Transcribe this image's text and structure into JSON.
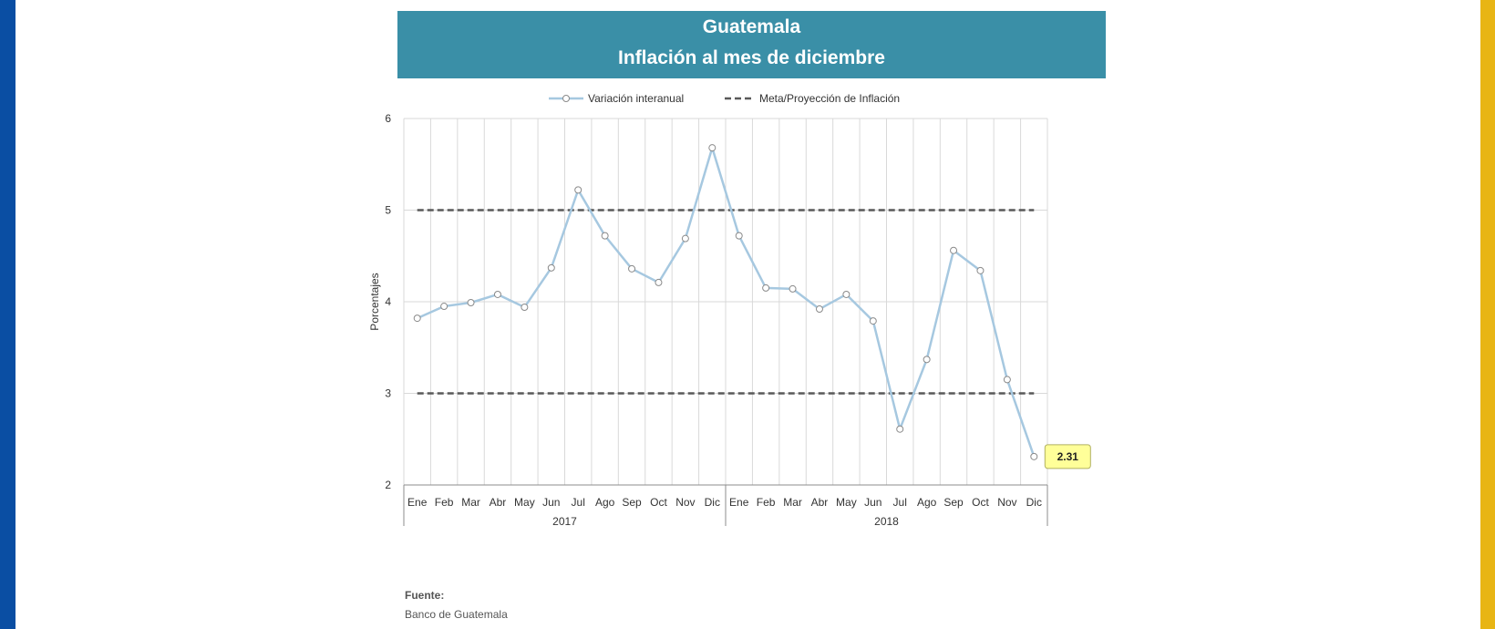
{
  "title": "Guatemala",
  "subtitle": "Inflación al mes de diciembre",
  "source": {
    "label": "Fuente:",
    "value": "Banco de Guatemala"
  },
  "colors": {
    "header": "#3a8fa7",
    "series": "#a6c8e0",
    "target": "#595959",
    "callout": "#ffff99"
  },
  "chart_data": {
    "type": "line",
    "ylabel": "Porcentajes",
    "ylim": [
      2,
      6
    ],
    "yticks": [
      2,
      3,
      4,
      5,
      6
    ],
    "grid": true,
    "legend_position": "top",
    "categories": [
      "Ene",
      "Feb",
      "Mar",
      "Abr",
      "May",
      "Jun",
      "Jul",
      "Ago",
      "Sep",
      "Oct",
      "Nov",
      "Dic",
      "Ene",
      "Feb",
      "Mar",
      "Abr",
      "May",
      "Jun",
      "Jul",
      "Ago",
      "Sep",
      "Oct",
      "Nov",
      "Dic"
    ],
    "groups": [
      {
        "label": "2017",
        "start": 0,
        "end": 11
      },
      {
        "label": "2018",
        "start": 12,
        "end": 23
      }
    ],
    "series": [
      {
        "name": "Variación interanual",
        "values": [
          3.82,
          3.95,
          3.99,
          4.08,
          3.94,
          4.37,
          5.22,
          4.72,
          4.36,
          4.21,
          4.69,
          5.68,
          4.72,
          4.15,
          4.14,
          3.92,
          4.08,
          3.79,
          2.61,
          3.37,
          4.56,
          4.34,
          3.15,
          2.31
        ]
      }
    ],
    "target_band": {
      "name": "Meta/Proyección de Inflación",
      "lower": 3,
      "upper": 5
    },
    "annotation": {
      "index": 23,
      "text": "2.31"
    }
  }
}
